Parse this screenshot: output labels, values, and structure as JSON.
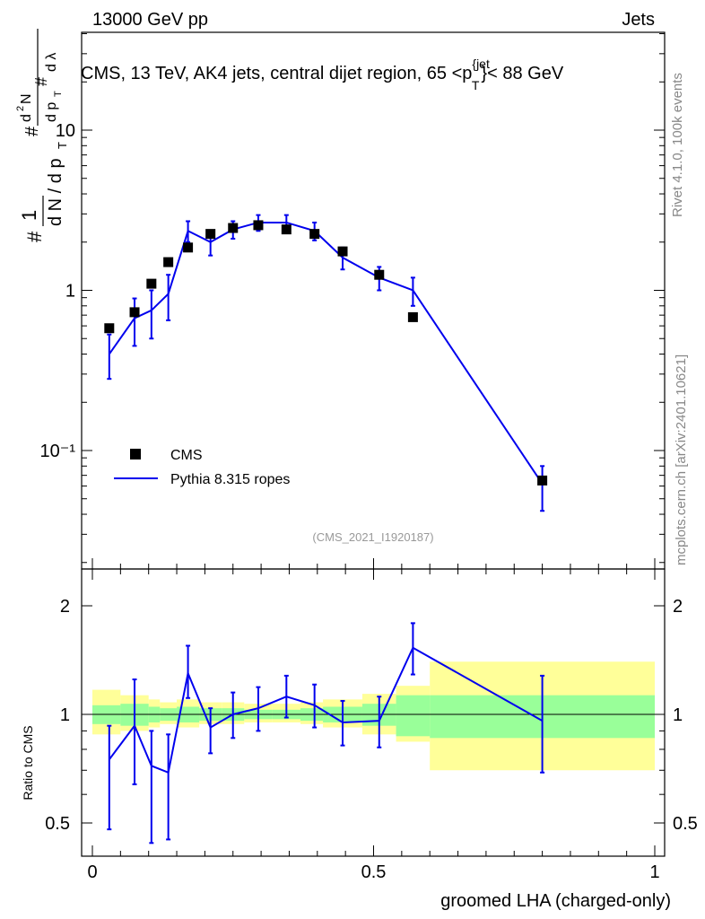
{
  "header": {
    "left": "13000 GeV pp",
    "right": "Jets"
  },
  "side_text": {
    "top": "Rivet 4.1.0,  100k events",
    "bottom": "mcplots.cern.ch [arXiv:2401.10621]"
  },
  "watermark": "(CMS_2021_I1920187)",
  "colors": {
    "data": "#000000",
    "mc": "#0000ee",
    "band_inner": "#99ff99",
    "band_outer": "#ffff99"
  },
  "chart_data": {
    "type": "line",
    "title": "CMS, 13 TeV, AK4 jets, central dijet region, 65 <p_T^{jet}< 88 GeV",
    "title_parts": {
      "a": "CMS, 13 TeV, AK4 jets, central dijet region, 65 <p",
      "sub": "T",
      "sup": "{jet",
      "b": "}< 88 GeV"
    },
    "xlabel": "groomed LHA (charged-only)",
    "ylabel_main": "1/(dN/dp_T) d²N/(dp_T dλ)",
    "ylabel_ratio": "Ratio to CMS",
    "xlim": [
      0,
      1
    ],
    "ylim_main": [
      0.02,
      50
    ],
    "ylim_ratio": [
      0.4,
      2.4
    ],
    "x_ticks": [
      "0",
      "0.5",
      "1"
    ],
    "y_ticks_main": [
      "10⁻¹",
      "1",
      "10"
    ],
    "y_ticks_ratio": [
      "0.5",
      "1",
      "2"
    ],
    "legend": {
      "data": "CMS",
      "mc": "Pythia 8.315 ropes"
    },
    "bin_edges": [
      0.0,
      0.05,
      0.1,
      0.12,
      0.15,
      0.19,
      0.23,
      0.27,
      0.32,
      0.37,
      0.41,
      0.48,
      0.54,
      0.6,
      1.0
    ],
    "data": {
      "name": "CMS",
      "x": [
        0.03,
        0.075,
        0.105,
        0.135,
        0.17,
        0.21,
        0.25,
        0.295,
        0.345,
        0.395,
        0.445,
        0.51,
        0.57,
        0.8
      ],
      "y": [
        0.58,
        0.73,
        1.1,
        1.5,
        1.85,
        2.25,
        2.45,
        2.55,
        2.4,
        2.25,
        1.75,
        1.25,
        0.68,
        0.065
      ]
    },
    "mc": {
      "name": "Pythia 8.315 ropes",
      "x": [
        0.03,
        0.075,
        0.105,
        0.135,
        0.17,
        0.21,
        0.25,
        0.295,
        0.345,
        0.395,
        0.445,
        0.51,
        0.57,
        0.8
      ],
      "y": [
        0.4,
        0.67,
        0.75,
        0.95,
        2.35,
        2.0,
        2.4,
        2.65,
        2.65,
        2.35,
        1.6,
        1.2,
        1.0,
        0.062
      ],
      "err_up": [
        0.13,
        0.22,
        0.25,
        0.3,
        0.35,
        0.35,
        0.3,
        0.3,
        0.3,
        0.3,
        0.25,
        0.2,
        0.2,
        0.018
      ],
      "err_dn": [
        0.12,
        0.22,
        0.25,
        0.3,
        0.35,
        0.35,
        0.3,
        0.3,
        0.3,
        0.3,
        0.25,
        0.2,
        0.2,
        0.02
      ]
    },
    "ratio": {
      "y": [
        0.75,
        0.93,
        0.72,
        0.69,
        1.3,
        0.92,
        1.0,
        1.04,
        1.12,
        1.06,
        0.95,
        0.96,
        1.53,
        0.96
      ],
      "err_up": [
        0.18,
        0.32,
        0.18,
        0.19,
        0.25,
        0.12,
        0.15,
        0.15,
        0.16,
        0.15,
        0.14,
        0.16,
        0.26,
        0.32
      ],
      "err_dn": [
        0.27,
        0.29,
        0.28,
        0.24,
        0.19,
        0.14,
        0.14,
        0.14,
        0.14,
        0.14,
        0.13,
        0.15,
        0.24,
        0.27
      ],
      "band_inner_lo": [
        0.94,
        0.93,
        0.95,
        0.96,
        0.95,
        0.96,
        0.96,
        0.97,
        0.97,
        0.96,
        0.95,
        0.93,
        0.87,
        0.86
      ],
      "band_inner_hi": [
        1.06,
        1.07,
        1.05,
        1.04,
        1.05,
        1.04,
        1.04,
        1.03,
        1.03,
        1.04,
        1.05,
        1.07,
        1.13,
        1.13
      ],
      "band_outer_lo": [
        0.88,
        0.9,
        0.92,
        0.94,
        0.92,
        0.94,
        0.94,
        0.95,
        0.95,
        0.94,
        0.92,
        0.88,
        0.84,
        0.7
      ],
      "band_outer_hi": [
        1.17,
        1.13,
        1.1,
        1.08,
        1.1,
        1.08,
        1.08,
        1.07,
        1.07,
        1.08,
        1.1,
        1.14,
        1.2,
        1.4
      ]
    }
  }
}
